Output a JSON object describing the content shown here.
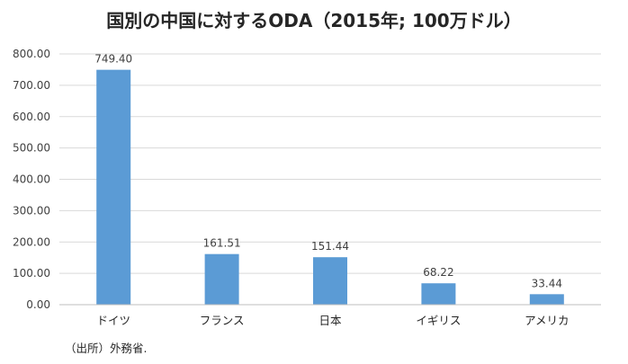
{
  "chart_data": {
    "type": "bar",
    "title": "国別の中国に対するODA（2015年; 100万ドル）",
    "categories": [
      "ドイツ",
      "フランス",
      "日本",
      "イギリス",
      "アメリカ"
    ],
    "values": [
      749.4,
      161.51,
      151.44,
      68.22,
      33.44
    ],
    "data_labels": [
      "749.40",
      "161.51",
      "151.44",
      "68.22",
      "33.44"
    ],
    "ylim": [
      0,
      800
    ],
    "y_ticks": [
      "0.00",
      "100.00",
      "200.00",
      "300.00",
      "400.00",
      "500.00",
      "600.00",
      "700.00",
      "800.00"
    ],
    "xlabel": "",
    "ylabel": "",
    "grid": true,
    "legend": "none",
    "bar_color": "#5b9bd5"
  },
  "source_note": "（出所）外務省."
}
